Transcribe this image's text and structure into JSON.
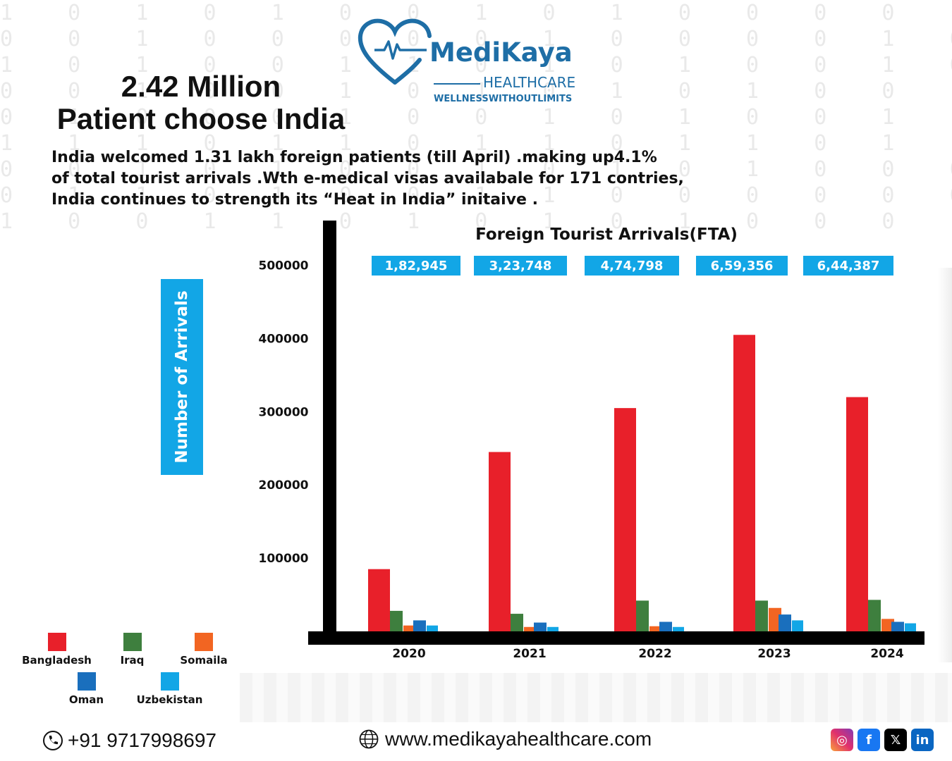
{
  "brand": {
    "name": "MediKaya",
    "subtitle": "HEALTHCARE",
    "tagline": "WELLNESSWITHOUTLIMITS",
    "colors": {
      "primary": "#1e6ea6",
      "accent": "#12a6e6"
    }
  },
  "headline": {
    "line1": "2.42 Million",
    "line2": "Patient choose India"
  },
  "intro": {
    "line1": "India welcomed 1.31 lakh foreign patients (till April) .making up4.1%",
    "line2": "of total tourist arrivals .Wth e-medical visas availabale for 171 contries,",
    "line3": "India continues to strength its “Heat in India” initaive ."
  },
  "chart_data": {
    "type": "bar",
    "title": "Foreign Tourist Arrivals(FTA)",
    "ylabel": "Number of Arrivals",
    "xlabel": "",
    "categories": [
      "2020",
      "2021",
      "2022",
      "2023",
      "2024"
    ],
    "totals": [
      "1,82,945",
      "3,23,748",
      "4,74,798",
      "6,59,356",
      "6,44,387"
    ],
    "y_ticks": [
      100000,
      200000,
      300000,
      400000,
      500000
    ],
    "y_tick_labels": [
      "100000",
      "200000",
      "300000",
      "400000",
      "500000"
    ],
    "ylim": [
      0,
      540000
    ],
    "series": [
      {
        "name": "Bangladesh",
        "color": "#e8202a",
        "values": [
          85000,
          245000,
          305000,
          405000,
          320000
        ]
      },
      {
        "name": "Iraq",
        "color": "#3e7f3e",
        "values": [
          28000,
          24000,
          42000,
          42000,
          43000
        ]
      },
      {
        "name": "Somaila",
        "color": "#f26522",
        "values": [
          8000,
          6000,
          7000,
          32000,
          17000
        ]
      },
      {
        "name": "Oman",
        "color": "#1a6fbd",
        "values": [
          15000,
          12000,
          13000,
          23000,
          13000
        ]
      },
      {
        "name": "Uzbekistan",
        "color": "#12a6e6",
        "values": [
          8000,
          6000,
          6000,
          15000,
          11000
        ]
      }
    ],
    "legend_position": "bottom-left"
  },
  "footer": {
    "phone": "+91 9717998697",
    "website": "www.medikayahealthcare.com",
    "social_icons": [
      "instagram-icon",
      "facebook-icon",
      "x-icon",
      "linkedin-icon"
    ]
  }
}
